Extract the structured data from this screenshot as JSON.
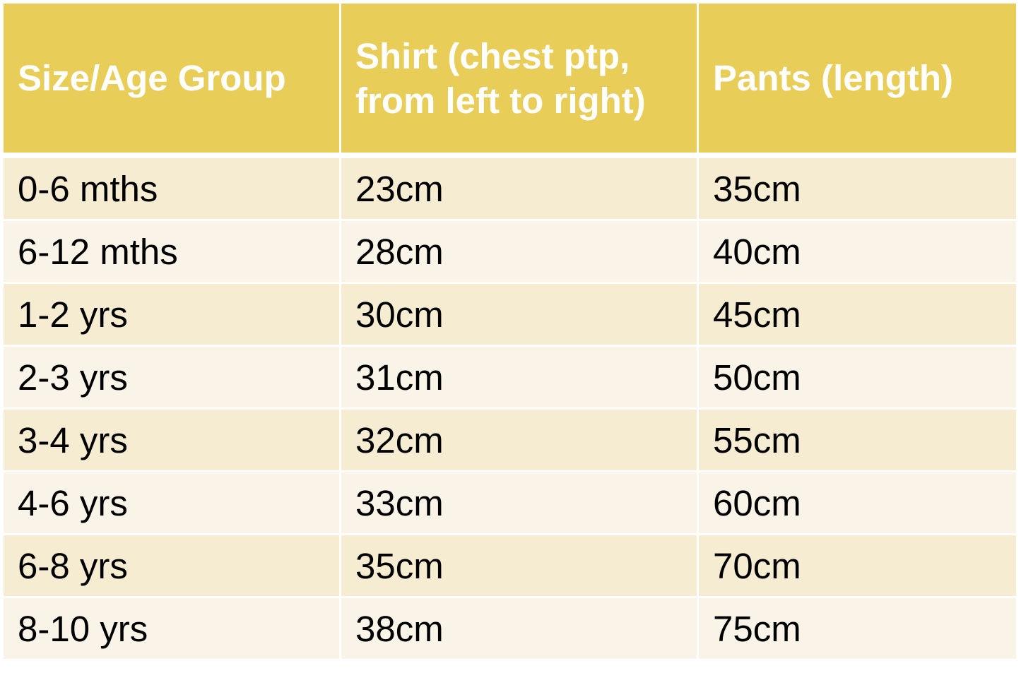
{
  "table": {
    "headers": [
      "Size/Age Group",
      "Shirt (chest ptp, from left to right)",
      "Pants (length)"
    ],
    "rows": [
      [
        "0-6 mths",
        "23cm",
        "35cm"
      ],
      [
        "6-12 mths",
        "28cm",
        "40cm"
      ],
      [
        "1-2 yrs",
        "30cm",
        "45cm"
      ],
      [
        "2-3 yrs",
        "31cm",
        "50cm"
      ],
      [
        "3-4 yrs",
        "32cm",
        "55cm"
      ],
      [
        "4-6 yrs",
        "33cm",
        "60cm"
      ],
      [
        "6-8 yrs",
        "35cm",
        "70cm"
      ],
      [
        "8-10 yrs",
        "38cm",
        "75cm"
      ]
    ],
    "colors": {
      "header": "#E8CE59",
      "row_odd": "#F5ECD2",
      "row_even": "#FAF4E8"
    }
  }
}
